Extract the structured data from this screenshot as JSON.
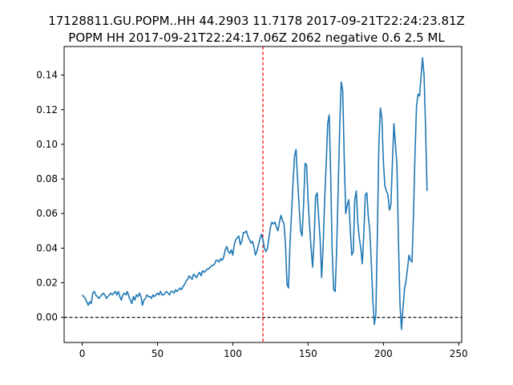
{
  "chart_data": {
    "type": "line",
    "title_lines": [
      "17128811.GU.POPM..HH 44.2903 11.7178 2017-09-21T22:24:23.81Z",
      "POPM HH 2017-09-21T22:24:17.06Z 2062 negative 0.6 2.5 ML"
    ],
    "xlabel": "",
    "ylabel": "",
    "xlim": [
      -12,
      252
    ],
    "ylim": [
      -0.0145,
      0.1565
    ],
    "x_ticks": [
      0,
      50,
      100,
      150,
      200,
      250
    ],
    "y_ticks": [
      0.0,
      0.02,
      0.04,
      0.06,
      0.08,
      0.1,
      0.12,
      0.14
    ],
    "x_tick_labels": [
      "0",
      "50",
      "100",
      "150",
      "200",
      "250"
    ],
    "y_tick_labels": [
      "0.00",
      "0.02",
      "0.04",
      "0.06",
      "0.08",
      "0.10",
      "0.12",
      "0.14"
    ],
    "grid": false,
    "line_color": "#1f77b4",
    "vline": {
      "x": 120,
      "color": "#ff0000",
      "style": "dashed"
    },
    "hline": {
      "y": 0.0,
      "color": "#000000",
      "style": "dashed"
    },
    "series": [
      {
        "x_start": 0,
        "x_step": 1,
        "values": [
          0.013,
          0.012,
          0.011,
          0.009,
          0.007,
          0.009,
          0.008,
          0.014,
          0.015,
          0.013,
          0.012,
          0.011,
          0.012,
          0.013,
          0.014,
          0.013,
          0.011,
          0.012,
          0.013,
          0.014,
          0.013,
          0.014,
          0.015,
          0.013,
          0.015,
          0.012,
          0.01,
          0.013,
          0.014,
          0.013,
          0.015,
          0.012,
          0.01,
          0.008,
          0.012,
          0.01,
          0.013,
          0.012,
          0.014,
          0.012,
          0.007,
          0.01,
          0.011,
          0.013,
          0.012,
          0.012,
          0.011,
          0.013,
          0.012,
          0.013,
          0.014,
          0.013,
          0.015,
          0.013,
          0.013,
          0.014,
          0.015,
          0.014,
          0.013,
          0.015,
          0.015,
          0.014,
          0.016,
          0.015,
          0.016,
          0.017,
          0.016,
          0.018,
          0.019,
          0.021,
          0.022,
          0.024,
          0.023,
          0.022,
          0.025,
          0.024,
          0.023,
          0.025,
          0.026,
          0.024,
          0.027,
          0.026,
          0.027,
          0.028,
          0.028,
          0.029,
          0.03,
          0.03,
          0.031,
          0.033,
          0.033,
          0.032,
          0.034,
          0.033,
          0.035,
          0.039,
          0.041,
          0.038,
          0.037,
          0.039,
          0.036,
          0.042,
          0.045,
          0.046,
          0.047,
          0.042,
          0.044,
          0.049,
          0.049,
          0.05,
          0.047,
          0.045,
          0.043,
          0.044,
          0.041,
          0.036,
          0.038,
          0.042,
          0.045,
          0.048,
          0.045,
          0.04,
          0.038,
          0.04,
          0.046,
          0.052,
          0.055,
          0.054,
          0.055,
          0.052,
          0.05,
          0.055,
          0.059,
          0.056,
          0.054,
          0.042,
          0.019,
          0.017,
          0.043,
          0.06,
          0.078,
          0.093,
          0.097,
          0.08,
          0.065,
          0.05,
          0.047,
          0.065,
          0.089,
          0.088,
          0.068,
          0.053,
          0.04,
          0.029,
          0.045,
          0.07,
          0.072,
          0.058,
          0.045,
          0.023,
          0.041,
          0.068,
          0.088,
          0.112,
          0.117,
          0.082,
          0.038,
          0.016,
          0.015,
          0.04,
          0.075,
          0.11,
          0.136,
          0.131,
          0.092,
          0.06,
          0.065,
          0.068,
          0.051,
          0.036,
          0.038,
          0.068,
          0.073,
          0.055,
          0.046,
          0.04,
          0.031,
          0.048,
          0.071,
          0.072,
          0.058,
          0.05,
          0.031,
          0.01,
          -0.004,
          0.002,
          0.048,
          0.1,
          0.121,
          0.115,
          0.09,
          0.076,
          0.073,
          0.071,
          0.062,
          0.065,
          0.09,
          0.112,
          0.1,
          0.088,
          0.045,
          0.008,
          -0.007,
          0.005,
          0.016,
          0.021,
          0.028,
          0.036,
          0.033,
          0.032,
          0.06,
          0.095,
          0.122,
          0.129,
          0.128,
          0.139,
          0.15,
          0.14,
          0.11,
          0.073
        ]
      }
    ]
  }
}
